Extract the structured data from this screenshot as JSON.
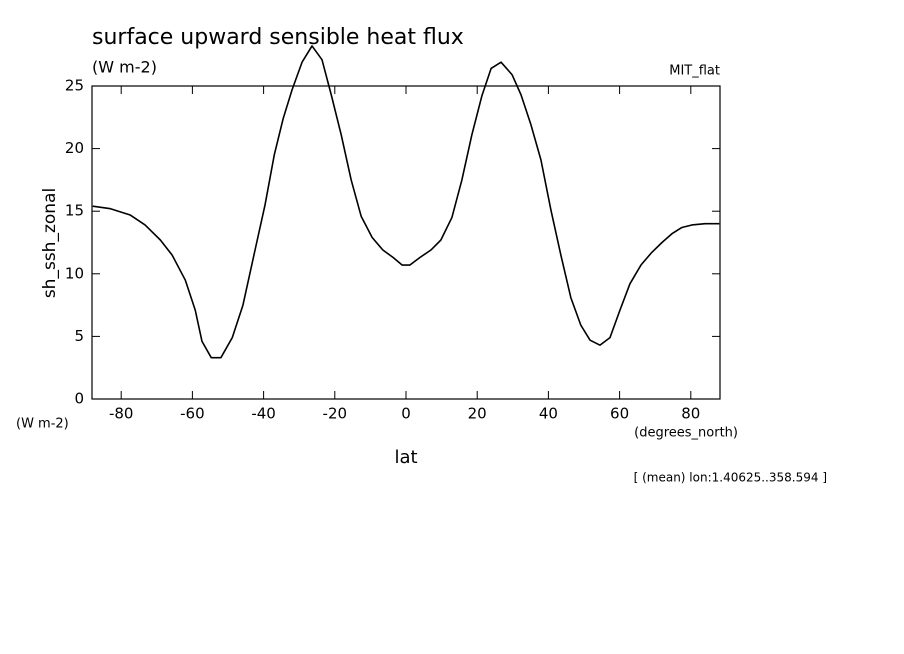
{
  "chart_data": {
    "type": "line",
    "title": "surface upward sensible heat flux",
    "subtitle": "(W m-2)",
    "annotation": "MIT_flat",
    "y_label": "sh_ssh_zonal",
    "y_units": "(W m-2)",
    "x_units": "(degrees_north)",
    "x_label": "lat",
    "note": "[ (mean) lon:1.40625..358.594 ]",
    "x": [
      -88,
      -83,
      -77.5,
      -73.3,
      -69,
      -65.7,
      -62,
      -59.2,
      -57.3,
      -54.7,
      -52,
      -48.8,
      -45.8,
      -42.4,
      -39.6,
      -37,
      -34.5,
      -32,
      -29.2,
      -26.4,
      -23.6,
      -21,
      -18.2,
      -15.4,
      -12.6,
      -9.5,
      -6.5,
      -3.6,
      -1.1,
      1.1,
      3.9,
      7,
      9.8,
      12.9,
      15.7,
      18.5,
      21.3,
      23.9,
      26.7,
      29.8,
      32.3,
      35.1,
      37.9,
      40.7,
      43.5,
      46.3,
      49.1,
      51.7,
      54.5,
      57.3,
      60.1,
      62.9,
      66,
      69,
      71.9,
      74.7,
      77.5,
      80.3,
      84,
      88
    ],
    "series": [
      {
        "color": "#000000",
        "values": [
          15.4,
          15.2,
          14.7,
          13.9,
          12.7,
          11.5,
          9.5,
          7.1,
          4.6,
          3.3,
          3.3,
          4.9,
          7.5,
          11.9,
          15.5,
          19.5,
          22.4,
          24.7,
          26.9,
          28.2,
          27.1,
          24.3,
          21.1,
          17.5,
          14.6,
          12.9,
          11.9,
          11.3,
          10.7,
          10.7,
          11.3,
          11.9,
          12.7,
          14.5,
          17.5,
          21.1,
          24.2,
          26.4,
          26.9,
          25.9,
          24.3,
          21.9,
          19.1,
          15.1,
          11.5,
          8.1,
          5.9,
          4.7,
          4.3,
          4.9,
          7.1,
          9.2,
          10.7,
          11.7,
          12.5,
          13.2,
          13.7,
          13.9,
          14.0,
          14.0
        ]
      }
    ],
    "xlim": [
      -88.2,
      88.2
    ],
    "xticks": [
      -80,
      -60,
      -40,
      -20,
      0,
      20,
      40,
      60,
      80
    ],
    "ylim": [
      0,
      25
    ],
    "yticks": [
      0,
      5,
      10,
      15,
      20,
      25
    ]
  }
}
